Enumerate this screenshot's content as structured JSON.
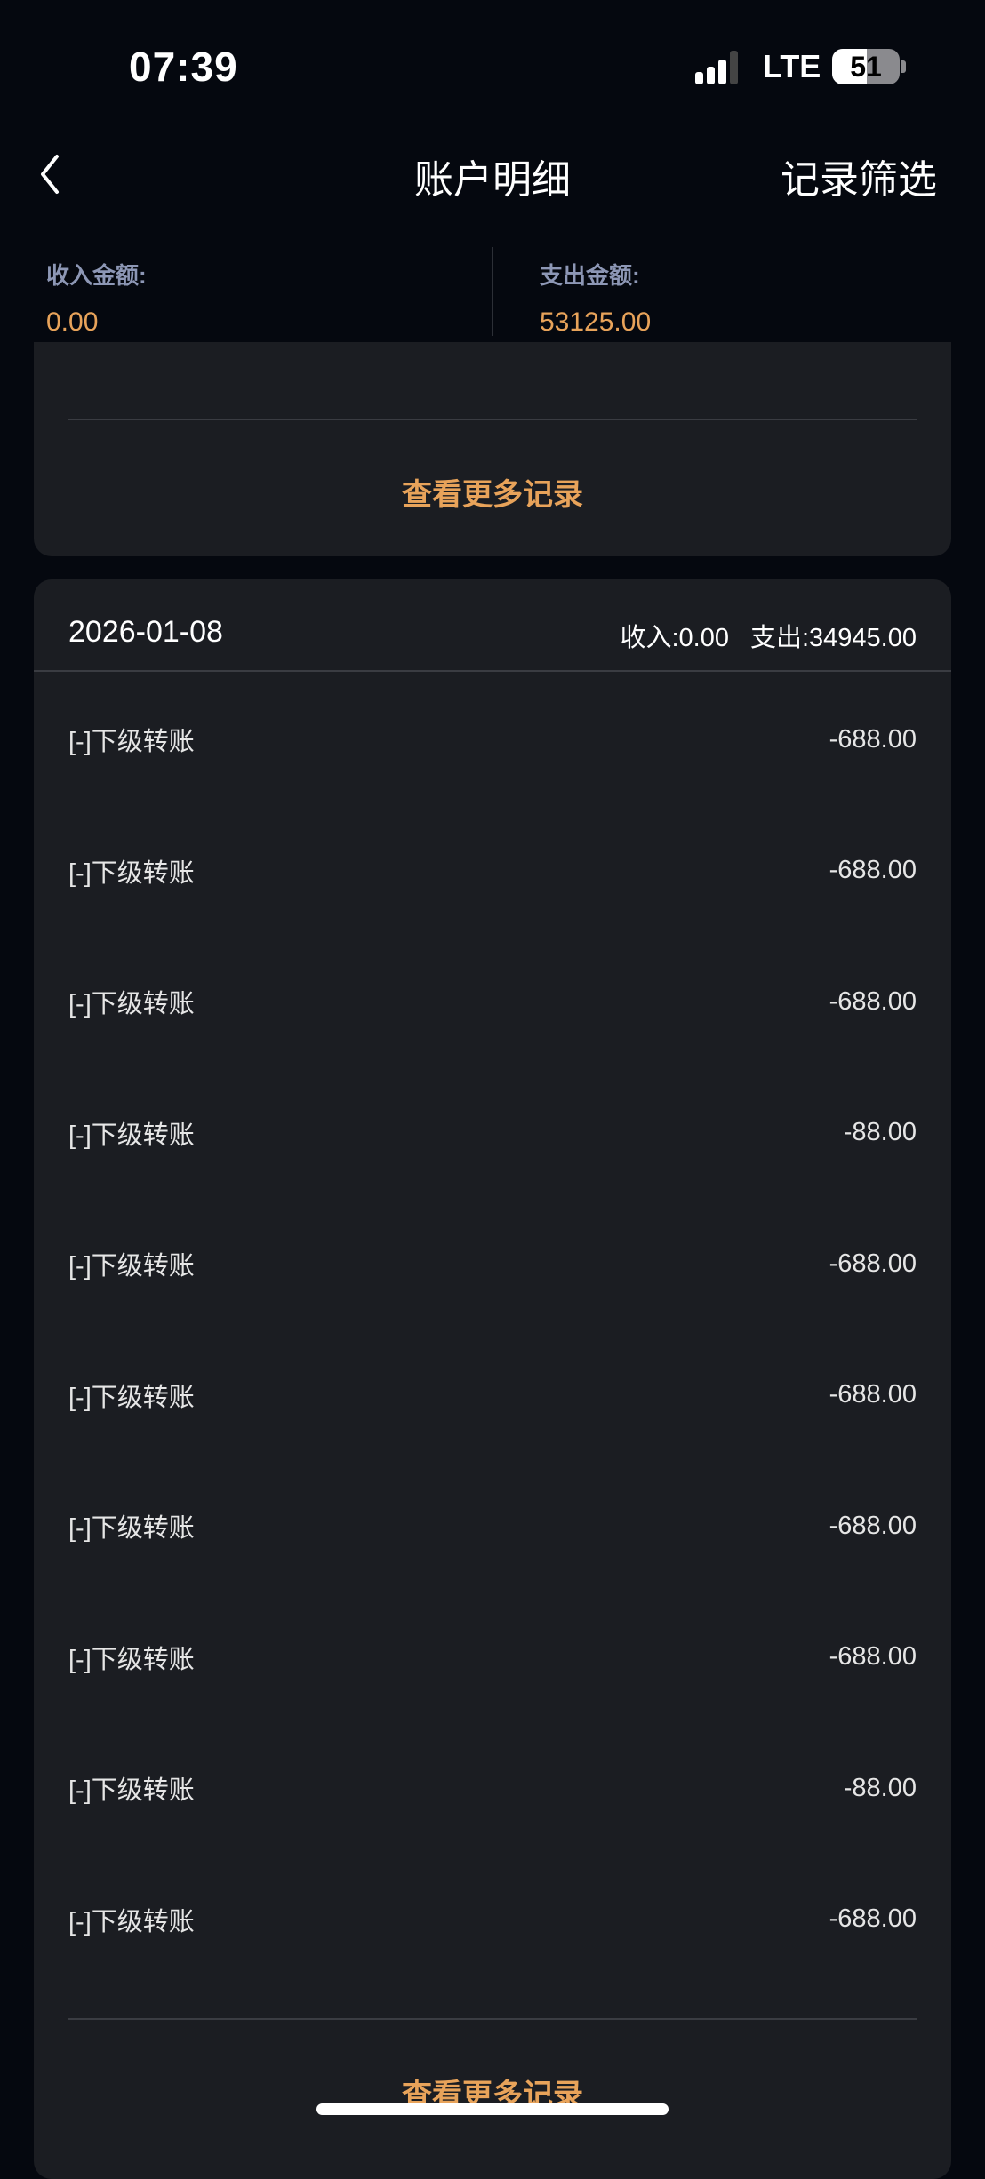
{
  "status_bar": {
    "time": "07:39",
    "network": "LTE",
    "battery": "51",
    "battery_level": 0.51
  },
  "nav": {
    "back_icon": "chevron-left-icon",
    "title": "账户明细",
    "filter_label": "记录筛选"
  },
  "summary": {
    "income_label": "收入金额:",
    "income_value": "0.00",
    "expense_label": "支出金额:",
    "expense_value": "53125.00"
  },
  "prev_group": {
    "more_label": "查看更多记录"
  },
  "group": {
    "date": "2026-01-08",
    "income": "收入:0.00",
    "expense": "支出:34945.00",
    "rows": [
      {
        "label": "[-]下级转账",
        "amount": "-688.00"
      },
      {
        "label": "[-]下级转账",
        "amount": "-688.00"
      },
      {
        "label": "[-]下级转账",
        "amount": "-688.00"
      },
      {
        "label": "[-]下级转账",
        "amount": "-88.00"
      },
      {
        "label": "[-]下级转账",
        "amount": "-688.00"
      },
      {
        "label": "[-]下级转账",
        "amount": "-688.00"
      },
      {
        "label": "[-]下级转账",
        "amount": "-688.00"
      },
      {
        "label": "[-]下级转账",
        "amount": "-688.00"
      },
      {
        "label": "[-]下级转账",
        "amount": "-88.00"
      },
      {
        "label": "[-]下级转账",
        "amount": "-688.00"
      }
    ],
    "more_label": "查看更多记录"
  },
  "colors": {
    "background": "#05080f",
    "card": "#1b1d22",
    "accent": "#e8a35a",
    "label": "#8d97b5"
  }
}
